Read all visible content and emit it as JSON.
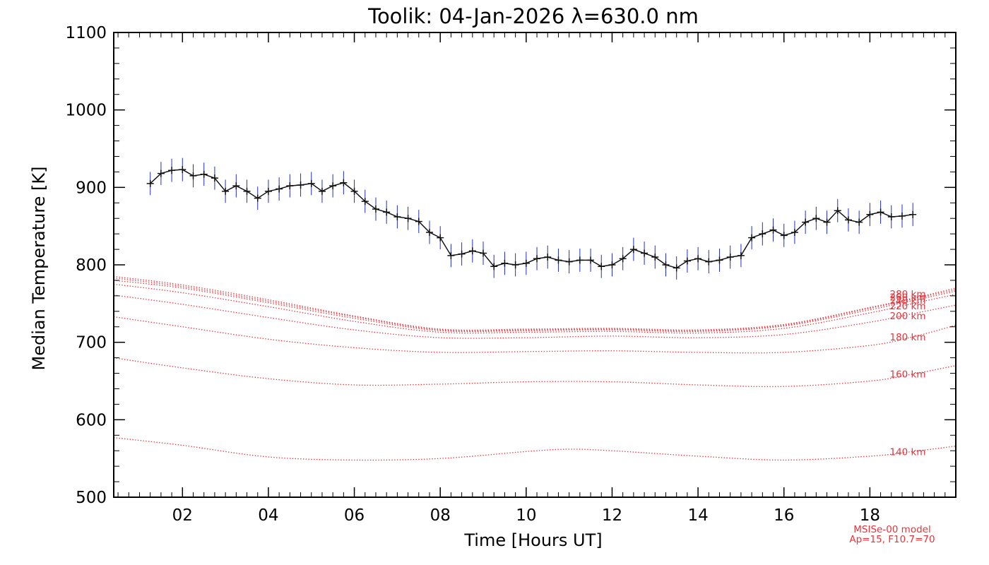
{
  "chart_data": {
    "type": "line",
    "title": "Toolik: 04-Jan-2026 λ=630.0 nm",
    "xlabel": "Time [Hours UT]",
    "ylabel": "Median Temperature [K]",
    "xlim": [
      0.4,
      20.0
    ],
    "ylim": [
      500,
      1100
    ],
    "x_ticks": [
      "02",
      "04",
      "06",
      "08",
      "10",
      "12",
      "14",
      "16",
      "18"
    ],
    "y_ticks": [
      "500",
      "600",
      "700",
      "800",
      "900",
      "1000",
      "1100"
    ],
    "grid": false,
    "model_note": [
      "MSISe-00 model",
      "Ap=15, F10.7=70"
    ],
    "colors": {
      "observed": "#111111",
      "error_bars": "#1f2fcc",
      "model": "#e8333a"
    },
    "observed_series": {
      "name": "Median Temperature",
      "x": [
        1.25,
        1.5,
        1.75,
        2.0,
        2.25,
        2.5,
        2.75,
        3.0,
        3.25,
        3.5,
        3.75,
        4.0,
        4.25,
        4.5,
        4.75,
        5.0,
        5.25,
        5.5,
        5.75,
        6.0,
        6.25,
        6.5,
        6.75,
        7.0,
        7.25,
        7.5,
        7.75,
        8.0,
        8.25,
        8.5,
        8.75,
        9.0,
        9.25,
        9.5,
        9.75,
        10.0,
        10.25,
        10.5,
        10.75,
        11.0,
        11.25,
        11.5,
        11.75,
        12.0,
        12.25,
        12.5,
        12.75,
        13.0,
        13.25,
        13.5,
        13.75,
        14.0,
        14.25,
        14.5,
        14.75,
        15.0,
        15.25,
        15.5,
        15.75,
        16.0,
        16.25,
        16.5,
        16.75,
        17.0,
        17.25,
        17.5,
        17.75,
        18.0,
        18.25,
        18.5,
        18.75,
        19.0
      ],
      "y": [
        905,
        918,
        922,
        923,
        915,
        917,
        912,
        895,
        902,
        895,
        886,
        895,
        898,
        902,
        903,
        905,
        895,
        902,
        906,
        895,
        882,
        872,
        868,
        862,
        860,
        856,
        842,
        835,
        812,
        814,
        818,
        815,
        798,
        802,
        800,
        802,
        808,
        810,
        806,
        804,
        806,
        806,
        798,
        800,
        808,
        820,
        815,
        810,
        800,
        796,
        805,
        808,
        804,
        806,
        810,
        812,
        835,
        840,
        845,
        838,
        842,
        855,
        860,
        855,
        870,
        858,
        855,
        865,
        868,
        862,
        863,
        865
      ],
      "error": 15
    },
    "model_series": [
      {
        "name": "140 km",
        "x": [
          0.4,
          2,
          4,
          6,
          8,
          10,
          11,
          12,
          14,
          16,
          18,
          19,
          20
        ],
        "y": [
          577,
          567,
          552,
          548,
          550,
          559,
          562,
          560,
          553,
          548,
          553,
          559,
          566
        ]
      },
      {
        "name": "160 km",
        "x": [
          0.4,
          2,
          4,
          6,
          8,
          10,
          12,
          14,
          16,
          18,
          19,
          20
        ],
        "y": [
          680,
          667,
          653,
          645,
          646,
          649,
          649,
          645,
          643,
          650,
          659,
          670
        ]
      },
      {
        "name": "180 km",
        "x": [
          0.4,
          2,
          4,
          6,
          8,
          10,
          12,
          14,
          16,
          18,
          19,
          20
        ],
        "y": [
          733,
          720,
          704,
          693,
          687,
          688,
          689,
          687,
          687,
          696,
          707,
          722
        ]
      },
      {
        "name": "200 km",
        "x": [
          0.4,
          2,
          4,
          6,
          8,
          10,
          12,
          14,
          16,
          18,
          19,
          20
        ],
        "y": [
          761,
          749,
          732,
          716,
          706,
          706,
          708,
          706,
          710,
          726,
          737,
          748
        ]
      },
      {
        "name": "220 km",
        "x": [
          0.4,
          2,
          4,
          6,
          8,
          10,
          12,
          14,
          16,
          18,
          19,
          20
        ],
        "y": [
          775,
          764,
          746,
          727,
          713,
          713,
          714,
          712,
          718,
          738,
          750,
          762
        ]
      },
      {
        "name": "240 km",
        "x": [
          0.4,
          2,
          4,
          6,
          8,
          10,
          12,
          14,
          16,
          18,
          19,
          20
        ],
        "y": [
          780,
          770,
          751,
          731,
          715,
          715,
          716,
          714,
          721,
          742,
          754,
          766
        ]
      },
      {
        "name": "260 km",
        "x": [
          0.4,
          2,
          4,
          6,
          8,
          10,
          12,
          14,
          16,
          18,
          19,
          20
        ],
        "y": [
          783,
          772,
          753,
          733,
          716,
          716,
          717,
          715,
          722,
          744,
          756,
          768
        ]
      },
      {
        "name": "280 km",
        "x": [
          0.4,
          2,
          4,
          6,
          8,
          10,
          12,
          14,
          16,
          18,
          19,
          20
        ],
        "y": [
          785,
          774,
          755,
          734,
          717,
          717,
          718,
          716,
          723,
          745,
          757,
          770
        ]
      }
    ],
    "model_labels": [
      "140 km",
      "160 km",
      "180 km",
      "200 km",
      "220 km",
      "240 km",
      "260 km",
      "280 km"
    ]
  }
}
